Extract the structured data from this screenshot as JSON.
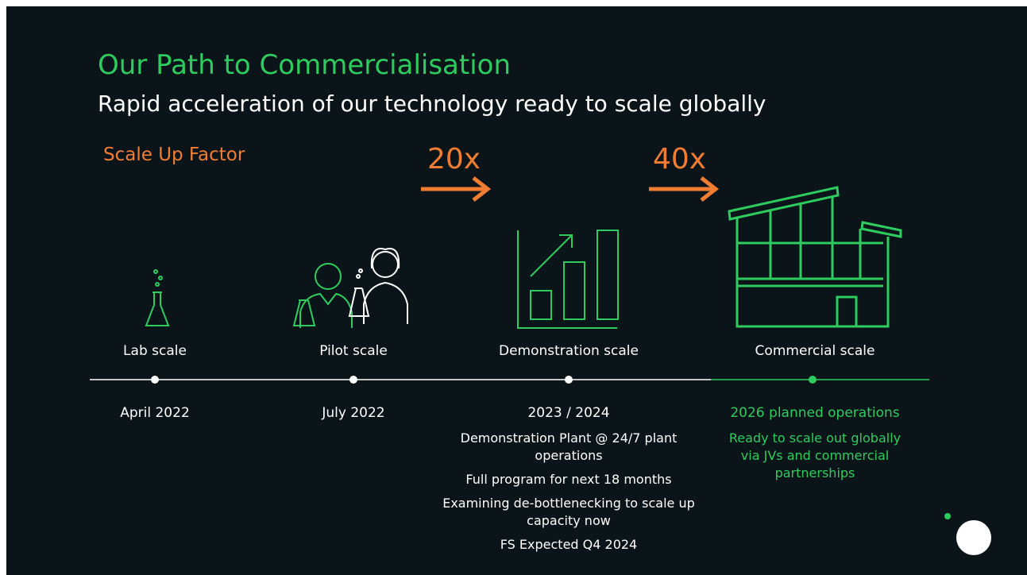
{
  "title": "Our Path to Commercialisation",
  "subtitle": "Rapid acceleration of our technology ready to scale globally",
  "scale_label": "Scale Up Factor",
  "factors": [
    "20x",
    "40x"
  ],
  "stages": [
    {
      "label": "Lab scale",
      "date": "April 2022",
      "notes": []
    },
    {
      "label": "Pilot scale",
      "date": "July 2022",
      "notes": []
    },
    {
      "label": "Demonstration scale",
      "date": "2023 / 2024",
      "notes": [
        "Demonstration Plant @ 24/7 plant operations",
        "Full program for next 18 months",
        "Examining de-bottlenecking to scale up capacity now",
        "FS Expected Q4 2024"
      ]
    },
    {
      "label": "Commercial scale",
      "date": "2026 planned operations",
      "notes": [
        "Ready to scale out globally via JVs and commercial partnerships"
      ]
    }
  ]
}
